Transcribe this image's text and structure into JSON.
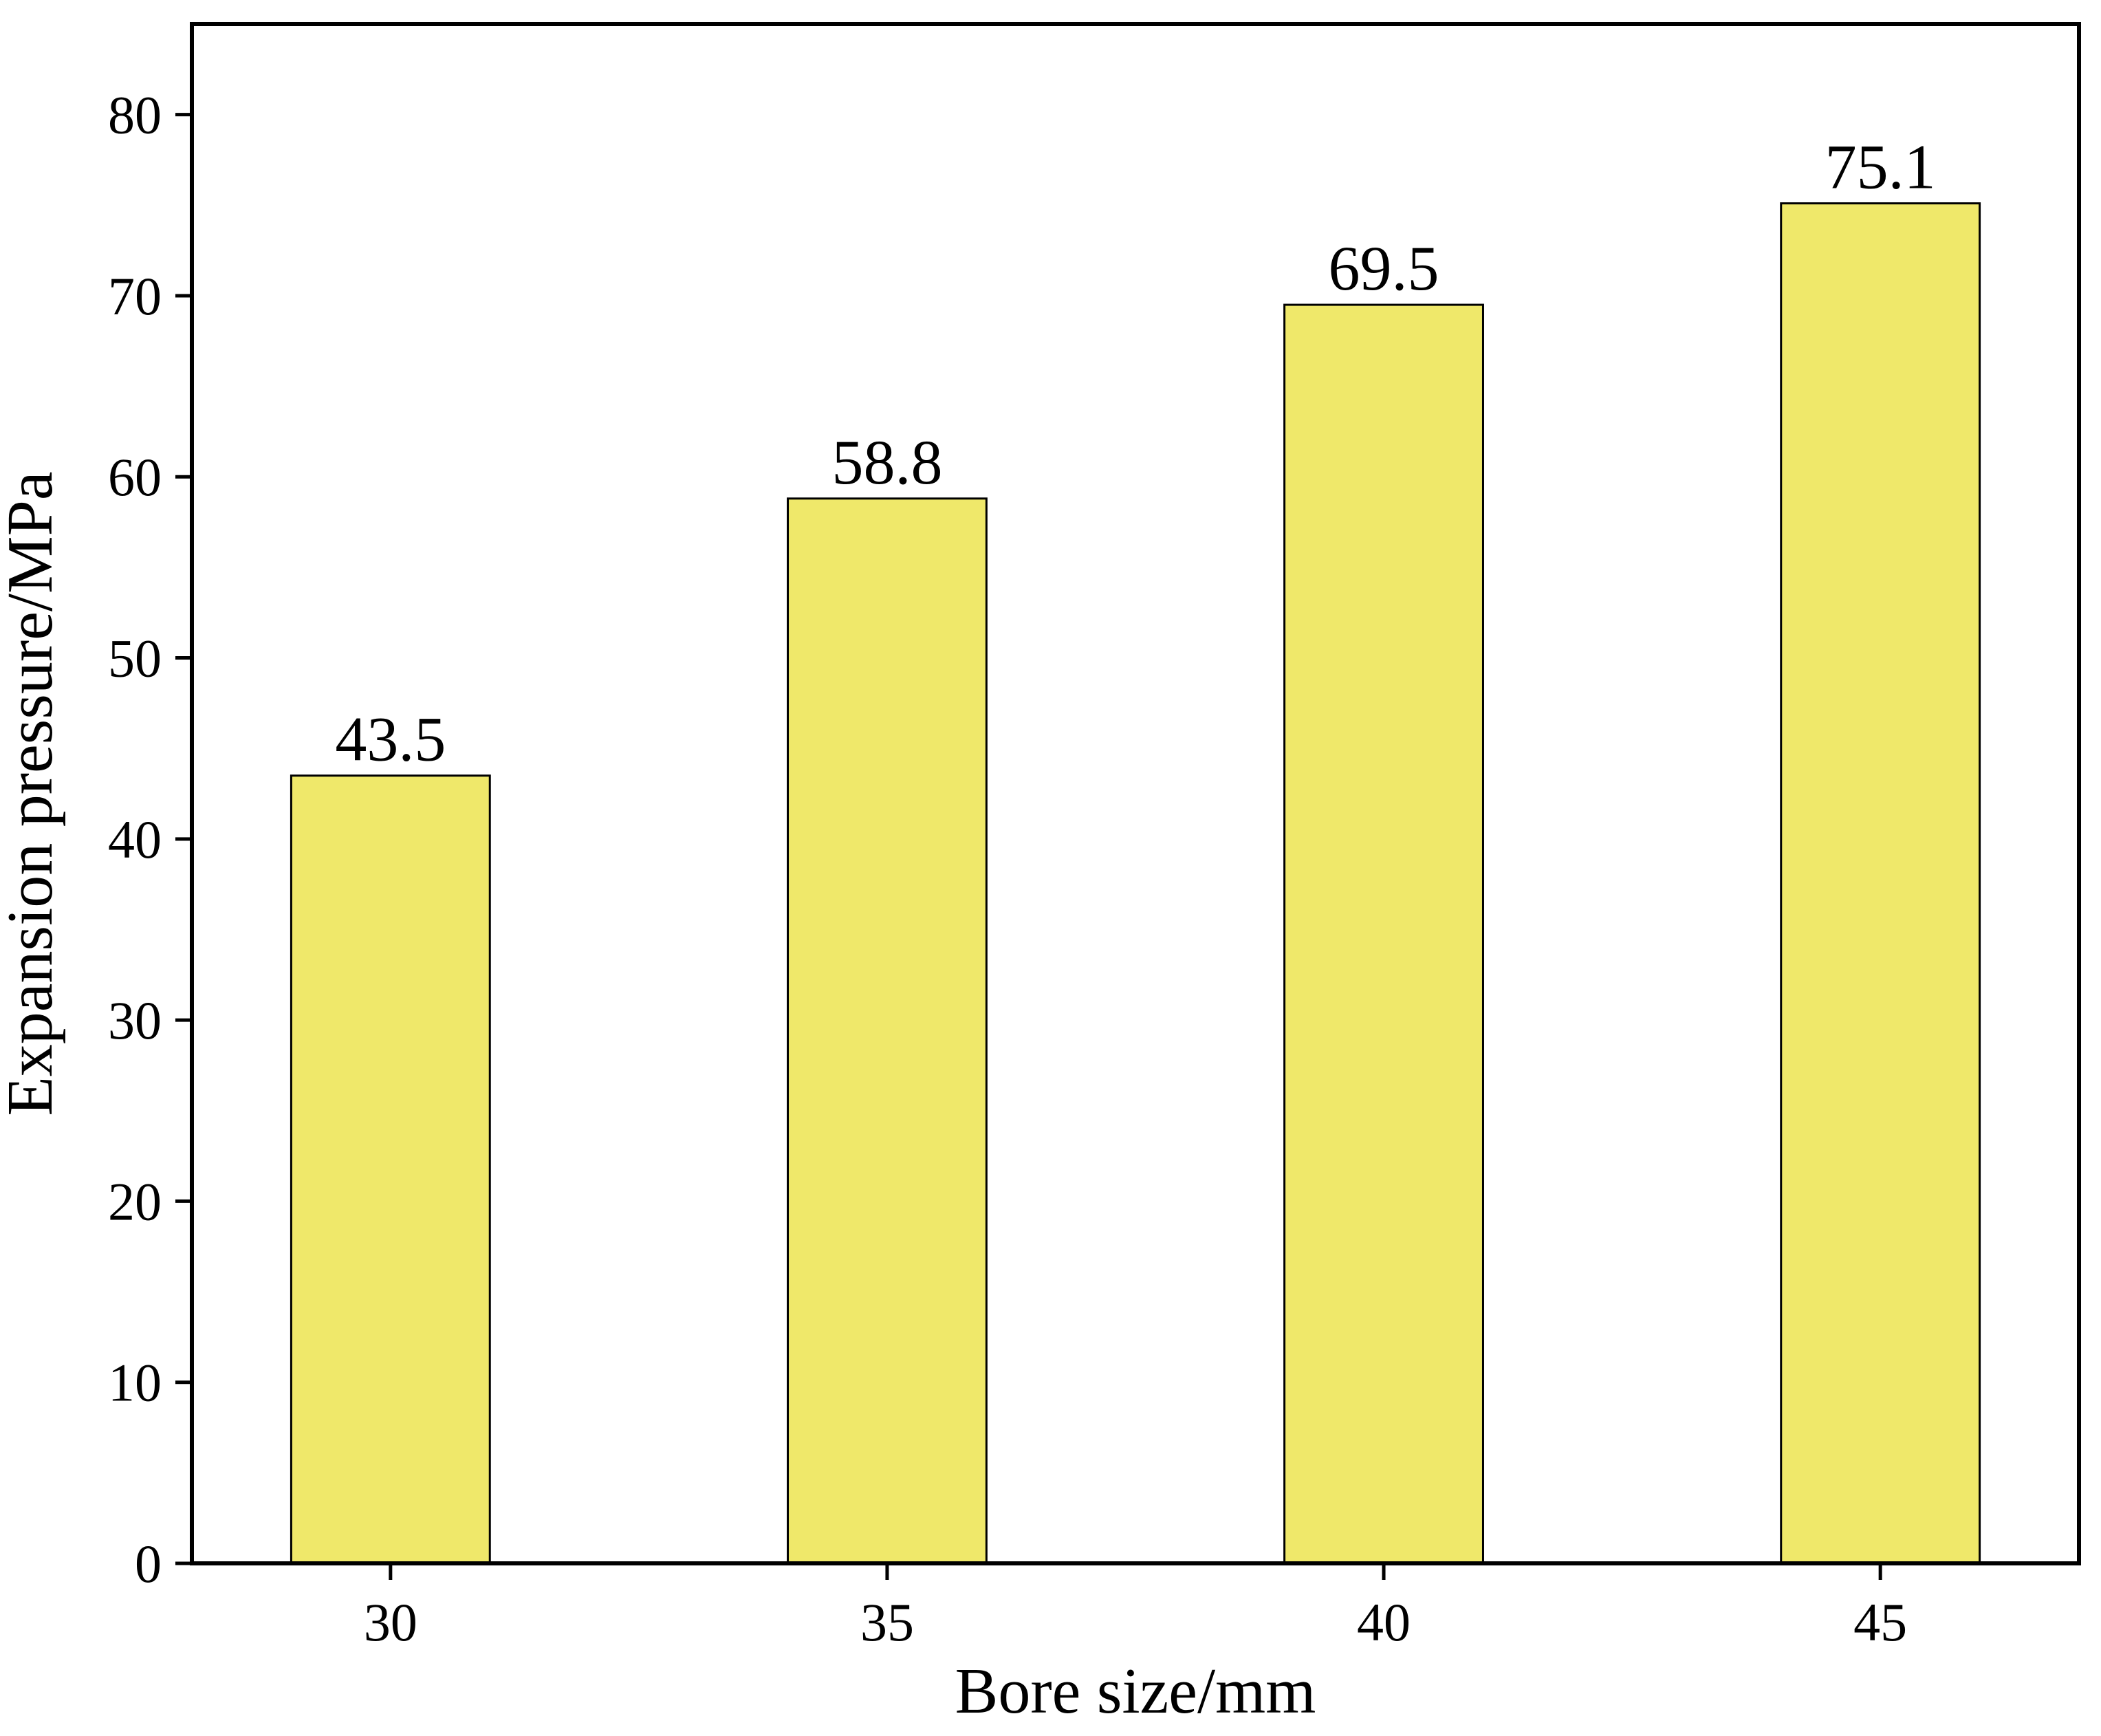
{
  "chart_data": {
    "type": "bar",
    "x_label": "Bore size/mm",
    "y_label": "Expansion pressure/MPa",
    "categories": [
      "30",
      "35",
      "40",
      "45"
    ],
    "values": [
      43.5,
      58.8,
      69.5,
      75.1
    ],
    "color": "#efe86a",
    "ylim": [
      0,
      85
    ],
    "yticks": [
      0,
      10,
      20,
      30,
      40,
      50,
      60,
      70,
      80
    ],
    "grid": false
  }
}
